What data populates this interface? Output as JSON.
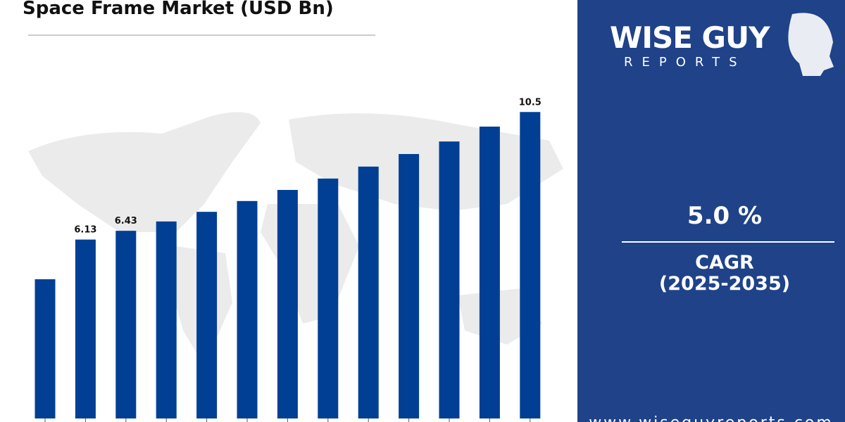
{
  "chart_data": {
    "type": "bar",
    "title": "Space Frame Market (USD Bn)",
    "categories": [
      null,
      null,
      null,
      null,
      null,
      null,
      null,
      null,
      null,
      null,
      null,
      null,
      null
    ],
    "values": [
      4.77,
      6.13,
      6.43,
      6.75,
      7.08,
      7.45,
      7.83,
      8.22,
      8.63,
      9.06,
      9.49,
      10.0,
      10.5
    ],
    "value_labels": [
      null,
      "6.13",
      "6.43",
      null,
      null,
      null,
      null,
      null,
      null,
      null,
      null,
      null,
      "10.5"
    ],
    "color": "#003f94",
    "ylim": [
      0,
      14
    ]
  },
  "panel": {
    "logo_top": "WISE GUY",
    "logo_bottom": "REPORTS",
    "cagr_value": "5.0 %",
    "cagr_label": "CAGR",
    "cagr_period": "(2025-2035)",
    "website": "www.wiseguyreports.com"
  }
}
